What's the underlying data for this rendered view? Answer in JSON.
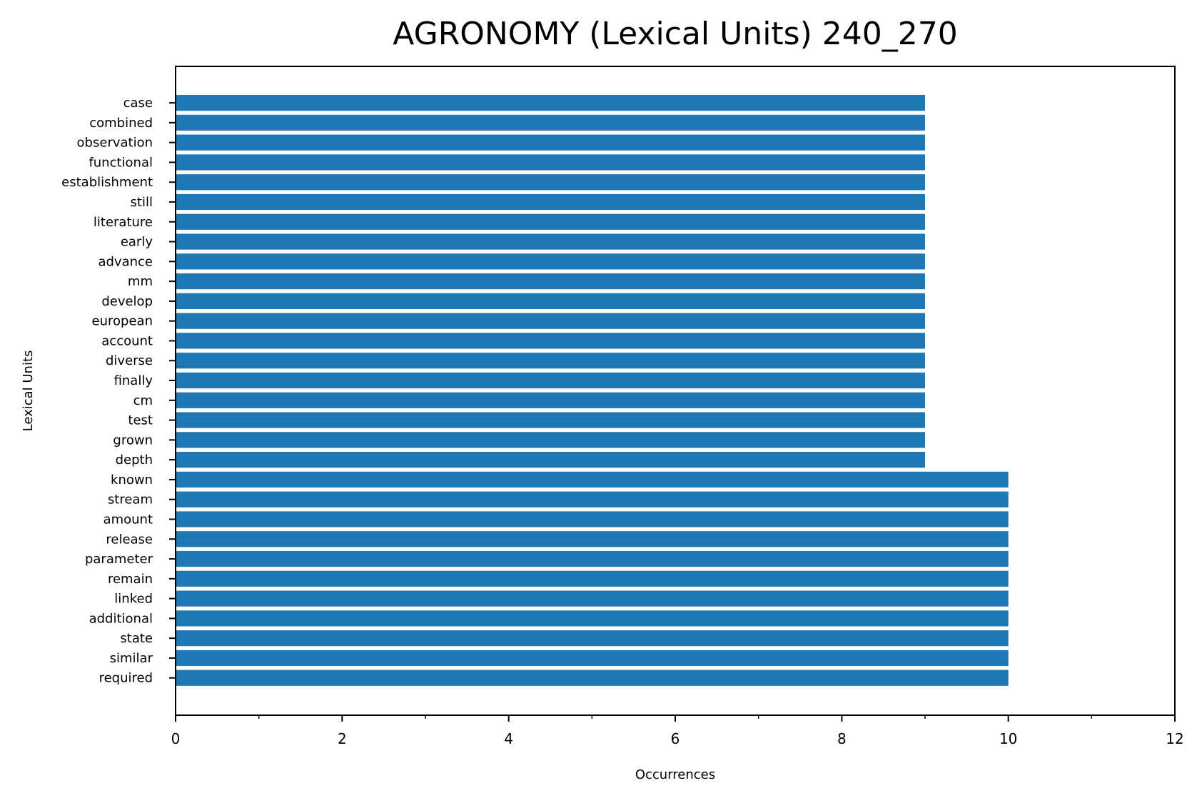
{
  "chart_data": {
    "type": "bar",
    "orientation": "horizontal",
    "title": "AGRONOMY (Lexical Units) 240_270",
    "xlabel": "Occurrences",
    "ylabel": "Lexical Units",
    "xlim": [
      0,
      12
    ],
    "xticks": [
      0,
      2,
      4,
      6,
      8,
      10,
      12
    ],
    "xminor_ticks": [
      1,
      3,
      5,
      7,
      9,
      11
    ],
    "grid": false,
    "legend": "none",
    "bar_color": "#1f77b4",
    "categories": [
      "case",
      "combined",
      "observation",
      "functional",
      "establishment",
      "still",
      "literature",
      "early",
      "advance",
      "mm",
      "develop",
      "european",
      "account",
      "diverse",
      "finally",
      "cm",
      "test",
      "grown",
      "depth",
      "known",
      "stream",
      "amount",
      "release",
      "parameter",
      "remain",
      "linked",
      "additional",
      "state",
      "similar",
      "required"
    ],
    "values": [
      9,
      9,
      9,
      9,
      9,
      9,
      9,
      9,
      9,
      9,
      9,
      9,
      9,
      9,
      9,
      9,
      9,
      9,
      9,
      10,
      10,
      10,
      10,
      10,
      10,
      10,
      10,
      10,
      10,
      10
    ]
  }
}
